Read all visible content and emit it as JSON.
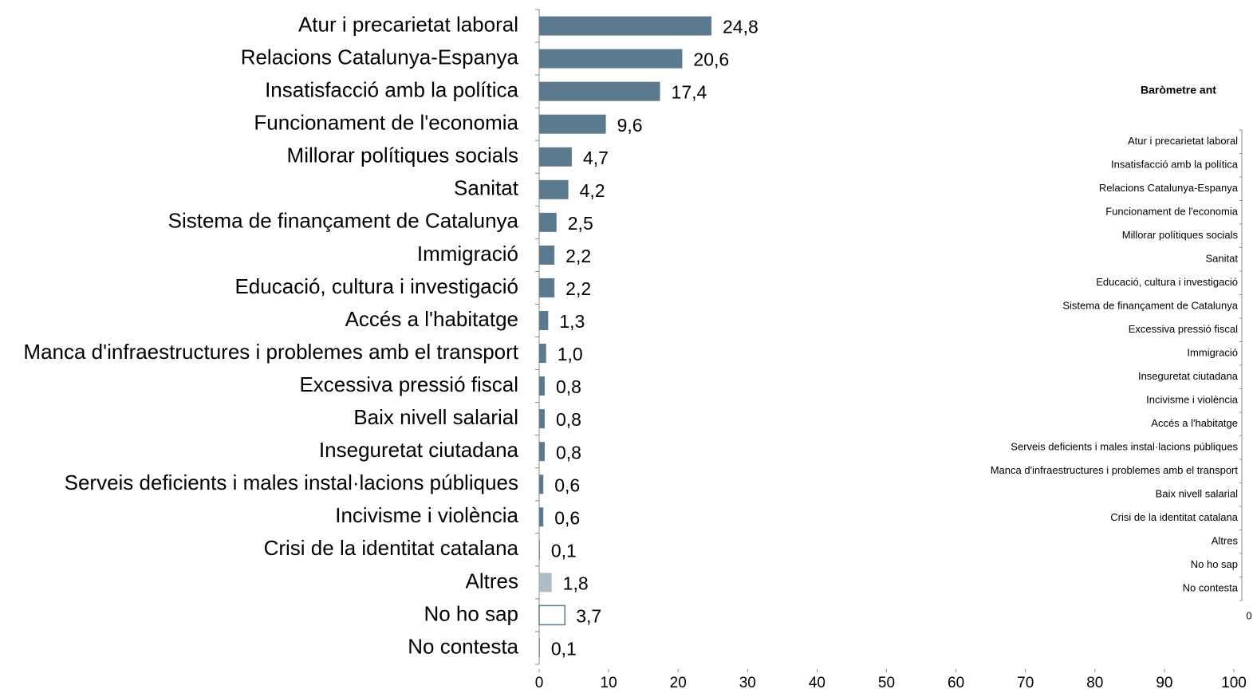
{
  "chart_data": [
    {
      "type": "bar",
      "orientation": "horizontal",
      "categories": [
        "Atur i precarietat laboral",
        "Relacions Catalunya-Espanya",
        "Insatisfacció amb la política",
        "Funcionament de l'economia",
        "Millorar polítiques socials",
        "Sanitat",
        "Sistema de finançament de Catalunya",
        "Immigració",
        "Educació, cultura i investigació",
        "Accés a l'habitatge",
        "Manca d'infraestructures i problemes amb el transport",
        "Excessiva pressió fiscal",
        "Baix nivell salarial",
        "Inseguretat ciutadana",
        "Serveis deficients i males instal·lacions públiques",
        "Incivisme i violència",
        "Crisi de la identitat catalana",
        "Altres",
        "No ho sap",
        "No contesta"
      ],
      "values": [
        24.8,
        20.6,
        17.4,
        9.6,
        4.7,
        4.2,
        2.5,
        2.2,
        2.2,
        1.3,
        1.0,
        0.8,
        0.8,
        0.8,
        0.6,
        0.6,
        0.1,
        1.8,
        3.7,
        0.1
      ],
      "value_labels": [
        "24,8",
        "20,6",
        "17,4",
        "9,6",
        "4,7",
        "4,2",
        "2,5",
        "2,2",
        "2,2",
        "1,3",
        "1,0",
        "0,8",
        "0,8",
        "0,8",
        "0,6",
        "0,6",
        "0,1",
        "1,8",
        "3,7",
        "0,1"
      ],
      "colors": [
        "#5b7a8e",
        "#5b7a8e",
        "#5b7a8e",
        "#5b7a8e",
        "#5b7a8e",
        "#5b7a8e",
        "#5b7a8e",
        "#5b7a8e",
        "#5b7a8e",
        "#5b7a8e",
        "#5b7a8e",
        "#5b7a8e",
        "#5b7a8e",
        "#5b7a8e",
        "#5b7a8e",
        "#5b7a8e",
        "#5b7a8e",
        "#aebcc6",
        "#ffffff",
        "#5b7a8e"
      ],
      "xlim": [
        0,
        100
      ],
      "xticks": [
        0,
        10,
        20,
        30,
        40,
        50,
        60,
        70,
        80,
        90,
        100
      ]
    },
    {
      "type": "bar",
      "orientation": "horizontal",
      "title": "Baròmetre ant",
      "categories": [
        "Atur i precarietat laboral",
        "Insatisfacció amb la política",
        "Relacions Catalunya-Espanya",
        "Funcionament de l'economia",
        "Millorar polítiques socials",
        "Sanitat",
        "Educació, cultura i investigació",
        "Sistema de finançament de Catalunya",
        "Excessiva pressió fiscal",
        "Immigració",
        "Inseguretat ciutadana",
        "Incivisme i violència",
        "Accés a l'habitatge",
        "Serveis deficients i males instal·lacions públiques",
        "Manca d'infraestructures i problemes amb el transport",
        "Baix nivell salarial",
        "Crisi de la identitat catalana",
        "Altres",
        "No ho sap",
        "No contesta"
      ],
      "xticks": [
        0
      ]
    }
  ]
}
